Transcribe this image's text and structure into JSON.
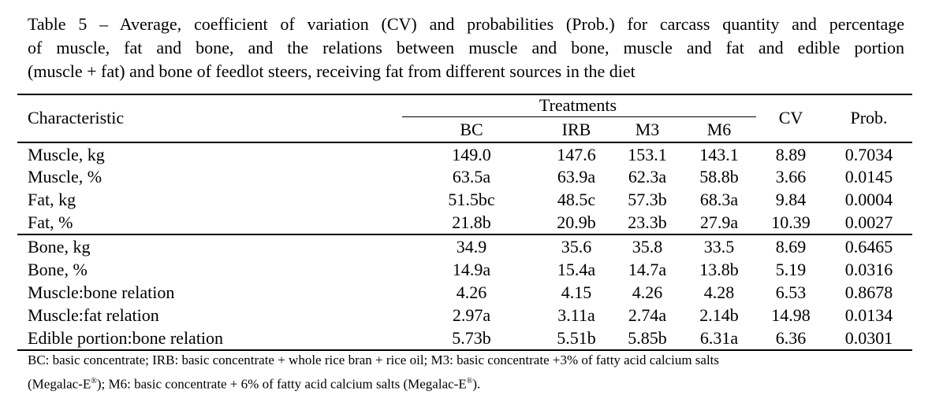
{
  "caption": [
    "Table 5 – Average, coefficient of variation (CV) and probabilities (Prob.) for carcass quantity and percentage",
    "of muscle, fat and bone, and the relations between muscle and bone, muscle and fat and edible portion",
    "(muscle + fat) and bone of feedlot steers, receiving fat from different sources in the diet"
  ],
  "header": {
    "characteristic": "Characteristic",
    "treatments": "Treatments",
    "columns": [
      "BC",
      "IRB",
      "M3",
      "M6"
    ],
    "cv": "CV",
    "prob": "Prob."
  },
  "rows": [
    {
      "label": "Muscle, kg",
      "values": [
        "149.0",
        "147.6",
        "153.1",
        "143.1",
        "8.89",
        "0.7034"
      ]
    },
    {
      "label": "Muscle, %",
      "values": [
        "63.5a",
        "63.9a",
        "62.3a",
        "58.8b",
        "3.66",
        "0.0145"
      ]
    },
    {
      "label": "Fat, kg",
      "values": [
        "51.5bc",
        "48.5c",
        "57.3b",
        "68.3a",
        "9.84",
        "0.0004"
      ]
    },
    {
      "label": "Fat, %",
      "values": [
        "21.8b",
        "20.9b",
        "23.3b",
        "27.9a",
        "10.39",
        "0.0027"
      ]
    },
    {
      "label": "Bone, kg",
      "values": [
        "34.9",
        "35.6",
        "35.8",
        "33.5",
        "8.69",
        "0.6465"
      ]
    },
    {
      "label": "Bone, %",
      "values": [
        "14.9a",
        "15.4a",
        "14.7a",
        "13.8b",
        "5.19",
        "0.0316"
      ]
    },
    {
      "label": "Muscle:bone relation",
      "values": [
        "4.26",
        "4.15",
        "4.26",
        "4.28",
        "6.53",
        "0.8678"
      ]
    },
    {
      "label": "Muscle:fat relation",
      "values": [
        "2.97a",
        "3.11a",
        "2.74a",
        "2.14b",
        "14.98",
        "0.0134"
      ]
    },
    {
      "label": "Edible portion:bone relation",
      "values": [
        "5.73b",
        "5.51b",
        "5.85b",
        "6.31a",
        "6.36",
        "0.0301"
      ]
    }
  ],
  "footnote": {
    "line1": "BC: basic concentrate; IRB: basic concentrate + whole rice bran + rice oil; M3: basic concentrate +3% of fatty acid calcium salts",
    "line2a": "(Megalac-E",
    "reg": "®",
    "line2b": "); M6: basic concentrate + 6% of fatty acid calcium salts (Megalac-E",
    "line2c": ")."
  }
}
